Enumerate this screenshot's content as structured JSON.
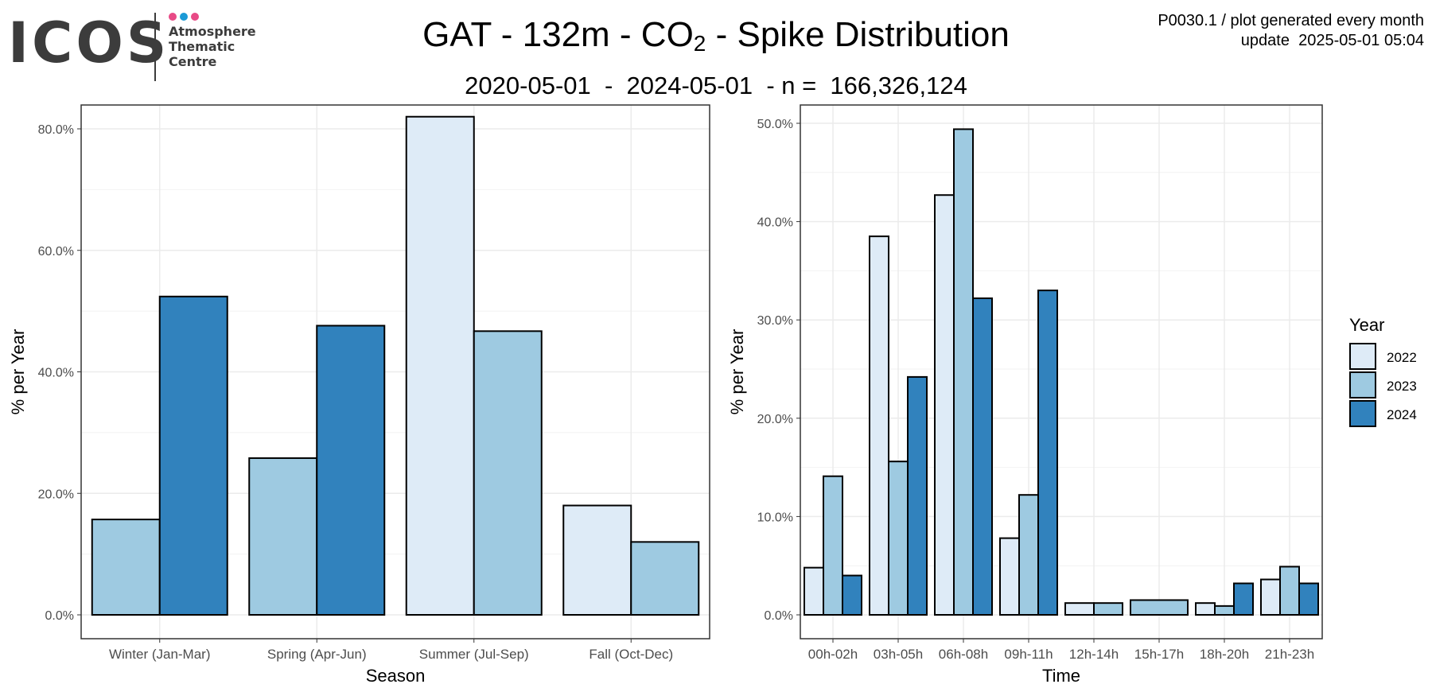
{
  "logo": {
    "wordmark": "ICOS",
    "subtitle_lines": [
      "Atmosphere",
      "Thematic",
      "Centre"
    ],
    "dot_colors": [
      "#e84a86",
      "#1b9ad6",
      "#e84a86"
    ]
  },
  "header": {
    "title_pre": "GAT - 132m - CO",
    "title_sub": "2",
    "title_post": " - Spike Distribution",
    "subtitle": "2020-05-01  -  2024-05-01  - n =  166,326,124",
    "meta_line1": "P0030.1 / plot generated every month",
    "meta_line2": "update  2025-05-01 05:04"
  },
  "colors": {
    "2022": "#deebf7",
    "2023": "#9ecae1",
    "2024": "#3182bd",
    "grid": "#ebebeb",
    "axis_text": "#4d4d4d"
  },
  "legend": {
    "title": "Year",
    "entries": [
      "2022",
      "2023",
      "2024"
    ]
  },
  "chart_data": [
    {
      "type": "bar",
      "xlabel": "Season",
      "ylabel": "% per Year",
      "ylim": [
        0,
        0.82
      ],
      "yticks": [
        0,
        0.2,
        0.4,
        0.6,
        0.8
      ],
      "ytick_labels": [
        "0.0%",
        "20.0%",
        "40.0%",
        "60.0%",
        "80.0%"
      ],
      "grid": true,
      "categories": [
        "Winter (Jan-Mar)",
        "Spring (Apr-Jun)",
        "Summer (Jul-Sep)",
        "Fall (Oct-Dec)"
      ],
      "bars": [
        {
          "category": "Winter (Jan-Mar)",
          "year": "2023",
          "value": 0.157
        },
        {
          "category": "Winter (Jan-Mar)",
          "year": "2024",
          "value": 0.524
        },
        {
          "category": "Spring (Apr-Jun)",
          "year": "2023",
          "value": 0.258
        },
        {
          "category": "Spring (Apr-Jun)",
          "year": "2024",
          "value": 0.476
        },
        {
          "category": "Summer (Jul-Sep)",
          "year": "2022",
          "value": 0.82
        },
        {
          "category": "Summer (Jul-Sep)",
          "year": "2023",
          "value": 0.467
        },
        {
          "category": "Fall (Oct-Dec)",
          "year": "2022",
          "value": 0.18
        },
        {
          "category": "Fall (Oct-Dec)",
          "year": "2023",
          "value": 0.12
        }
      ]
    },
    {
      "type": "bar",
      "xlabel": "Time",
      "ylabel": "% per Year",
      "ylim": [
        0,
        0.5
      ],
      "yticks": [
        0,
        0.1,
        0.2,
        0.3,
        0.4,
        0.5
      ],
      "ytick_labels": [
        "0.0%",
        "10.0%",
        "20.0%",
        "30.0%",
        "40.0%",
        "50.0%"
      ],
      "grid": true,
      "categories": [
        "00h-02h",
        "03h-05h",
        "06h-08h",
        "09h-11h",
        "12h-14h",
        "15h-17h",
        "18h-20h",
        "21h-23h"
      ],
      "bars": [
        {
          "category": "00h-02h",
          "year": "2022",
          "value": 0.048
        },
        {
          "category": "00h-02h",
          "year": "2023",
          "value": 0.141
        },
        {
          "category": "00h-02h",
          "year": "2024",
          "value": 0.04
        },
        {
          "category": "03h-05h",
          "year": "2022",
          "value": 0.385
        },
        {
          "category": "03h-05h",
          "year": "2023",
          "value": 0.156
        },
        {
          "category": "03h-05h",
          "year": "2024",
          "value": 0.242
        },
        {
          "category": "06h-08h",
          "year": "2022",
          "value": 0.427
        },
        {
          "category": "06h-08h",
          "year": "2023",
          "value": 0.494
        },
        {
          "category": "06h-08h",
          "year": "2024",
          "value": 0.322
        },
        {
          "category": "09h-11h",
          "year": "2022",
          "value": 0.078
        },
        {
          "category": "09h-11h",
          "year": "2023",
          "value": 0.122
        },
        {
          "category": "09h-11h",
          "year": "2024",
          "value": 0.33
        },
        {
          "category": "12h-14h",
          "year": "2022",
          "value": 0.012
        },
        {
          "category": "12h-14h",
          "year": "2023",
          "value": 0.012
        },
        {
          "category": "15h-17h",
          "year": "2023",
          "value": 0.015
        },
        {
          "category": "18h-20h",
          "year": "2022",
          "value": 0.012
        },
        {
          "category": "18h-20h",
          "year": "2023",
          "value": 0.009
        },
        {
          "category": "18h-20h",
          "year": "2024",
          "value": 0.032
        },
        {
          "category": "21h-23h",
          "year": "2022",
          "value": 0.036
        },
        {
          "category": "21h-23h",
          "year": "2023",
          "value": 0.049
        },
        {
          "category": "21h-23h",
          "year": "2024",
          "value": 0.032
        }
      ]
    }
  ]
}
